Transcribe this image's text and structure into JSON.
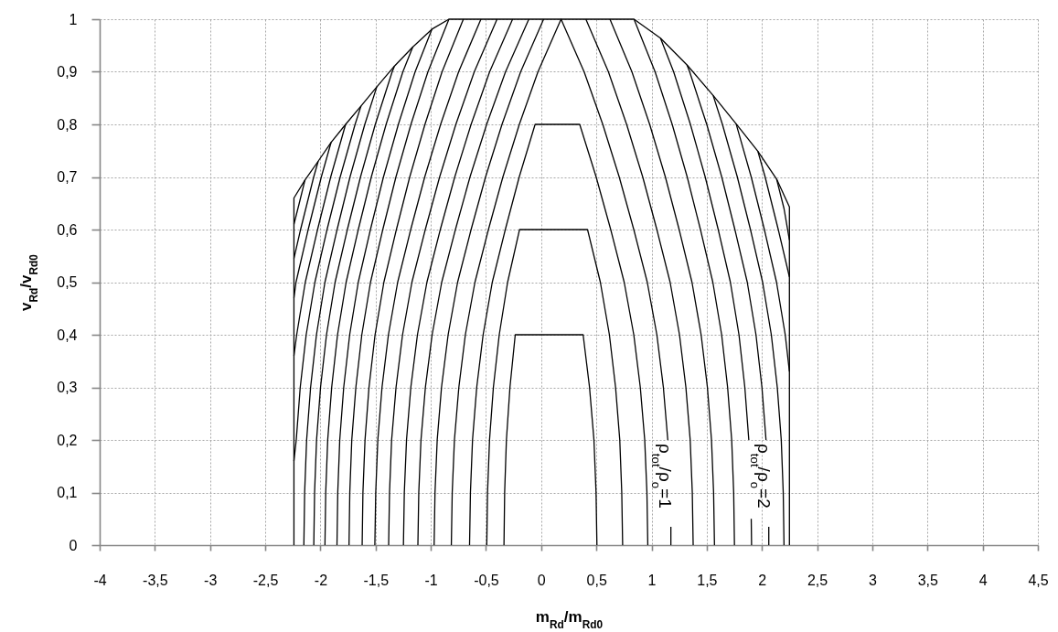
{
  "chart_data": {
    "type": "line",
    "xlabel": "m$_{Rd}$/m$_{Rd0}$",
    "ylabel": "v$_{Rd}$/v$_{Rd0}$",
    "xlim": [
      -4,
      4.5
    ],
    "xticks": [
      -4,
      {
        "value": -3.5,
        "label": "-3,5"
      },
      -3,
      {
        "value": -2.5,
        "label": "-2,5"
      },
      -2,
      {
        "value": -1.5,
        "label": "-1,5"
      },
      -1,
      {
        "value": -0.5,
        "label": "-0,5"
      },
      0,
      {
        "value": 0.5,
        "label": "0,5"
      },
      1,
      {
        "value": 1.5,
        "label": "1,5"
      },
      2,
      {
        "value": 2.5,
        "label": "2,5"
      },
      3,
      {
        "value": 3.5,
        "label": "3,5"
      },
      4,
      {
        "value": 4.5,
        "label": "4,5"
      }
    ],
    "ylim": [
      0,
      1
    ],
    "yticks": [
      0,
      {
        "value": 0.1,
        "label": "0,1"
      },
      {
        "value": 0.2,
        "label": "0,2"
      },
      {
        "value": 0.3,
        "label": "0,3"
      },
      {
        "value": 0.4,
        "label": "0,4"
      },
      {
        "value": 0.5,
        "label": "0,5"
      },
      {
        "value": 0.6,
        "label": "0,6"
      },
      {
        "value": 0.7,
        "label": "0,7"
      },
      {
        "value": 0.8,
        "label": "0,8"
      },
      {
        "value": 0.9,
        "label": "0,9"
      },
      1
    ],
    "grid": true,
    "annotations": [
      {
        "text": "ρ$_{tot}$/ρ$_{o}$=1",
        "x": 1.147,
        "y": 0.2
      },
      {
        "text": "ρ$_{tot}$/ρ$_{o}$=2",
        "x": 2.037,
        "y": 0.2
      }
    ],
    "series": [
      {
        "color": "#000000",
        "x": [
          -2.24,
          -2.24,
          -2.14,
          -2.02,
          -1.903,
          -1.772,
          -1.632,
          -1.49,
          -1.329,
          -1.164,
          -0.99,
          -0.836,
          0.841,
          1.081,
          1.321,
          1.558,
          1.766,
          1.963,
          2.133,
          2.249,
          2.249
        ],
        "values": [
          0,
          0.66,
          0.694,
          0.73,
          0.766,
          0.8,
          0.835,
          0.871,
          0.911,
          0.947,
          0.981,
          1,
          1,
          0.964,
          0.913,
          0.855,
          0.801,
          0.749,
          0.696,
          0.643,
          0
        ]
      },
      {
        "color": "#000000",
        "x": [
          -0.337,
          -0.331,
          -0.315,
          -0.283,
          -0.235,
          0.38,
          0.438,
          0.478,
          0.497,
          0.505
        ],
        "values": [
          0,
          0.1,
          0.2,
          0.3,
          0.4,
          0.4,
          0.3,
          0.2,
          0.1,
          0
        ]
      },
      {
        "color": "#000000",
        "x": [
          -0.493,
          -0.486,
          -0.468,
          -0.433,
          -0.38,
          -0.304,
          -0.196,
          0.42,
          0.536,
          0.618,
          0.674,
          0.712,
          0.73,
          0.738
        ],
        "values": [
          0,
          0.1,
          0.2,
          0.3,
          0.4,
          0.5,
          0.6,
          0.6,
          0.5,
          0.4,
          0.3,
          0.2,
          0.1,
          0
        ]
      },
      {
        "color": "#000000",
        "x": [
          -0.649,
          -0.641,
          -0.622,
          -0.584,
          -0.526,
          -0.443,
          -0.325,
          -0.199,
          -0.055,
          0.349,
          0.498,
          0.63,
          0.752,
          0.839,
          0.898,
          0.938,
          0.958,
          0.966
        ],
        "values": [
          0,
          0.1,
          0.2,
          0.3,
          0.4,
          0.5,
          0.6,
          0.7,
          0.8,
          0.8,
          0.7,
          0.6,
          0.5,
          0.4,
          0.3,
          0.2,
          0.1,
          0
        ]
      },
      {
        "color": "#000000",
        "x": [
          -0.814,
          -0.806,
          -0.786,
          -0.746,
          -0.687,
          -0.6,
          -0.478,
          -0.347,
          -0.198,
          -0.029,
          0.18,
          0.389,
          0.558,
          0.707,
          0.839,
          0.961,
          1.048,
          1.107,
          1.147,
          1.16,
          1.175,
          1.175
        ],
        "values": [
          0,
          0.1,
          0.2,
          0.3,
          0.4,
          0.5,
          0.6,
          0.7,
          0.8,
          0.9,
          1,
          0.9,
          0.8,
          0.7,
          0.6,
          0.5,
          0.4,
          0.3,
          0.2,
          null,
          0.035,
          0
        ]
      },
      {
        "color": "#000000",
        "x": [
          -0.97,
          -0.962,
          -0.942,
          -0.903,
          -0.843,
          -0.757,
          -0.635,
          -0.504,
          -0.355,
          -0.186,
          0.022
        ],
        "values": [
          0,
          0.1,
          0.2,
          0.3,
          0.4,
          0.5,
          0.6,
          0.7,
          0.8,
          0.9,
          1
        ]
      },
      {
        "color": "#000000",
        "x": [
          -1.117,
          -1.109,
          -1.089,
          -1.049,
          -0.988,
          -0.901,
          -0.777,
          -0.645,
          -0.494,
          -0.323,
          -0.112
        ],
        "values": [
          0,
          0.1,
          0.2,
          0.3,
          0.4,
          0.5,
          0.6,
          0.7,
          0.8,
          0.9,
          1
        ]
      },
      {
        "color": "#000000",
        "x": [
          -1.248,
          -1.24,
          -1.22,
          -1.181,
          -1.121,
          -1.035,
          -0.914,
          -0.783,
          -0.635,
          -0.467,
          -0.259
        ],
        "values": [
          0,
          0.1,
          0.2,
          0.3,
          0.4,
          0.5,
          0.6,
          0.7,
          0.8,
          0.9,
          1
        ]
      },
      {
        "color": "#000000",
        "x": [
          -1.382,
          -1.374,
          -1.355,
          -1.315,
          -1.256,
          -1.171,
          -1.05,
          -0.92,
          -0.773,
          -0.606,
          -0.4
        ],
        "values": [
          0,
          0.1,
          0.2,
          0.3,
          0.4,
          0.5,
          0.6,
          0.7,
          0.8,
          0.9,
          1
        ]
      },
      {
        "color": "#000000",
        "x": [
          -1.507,
          -1.499,
          -1.48,
          -1.442,
          -1.384,
          -1.3,
          -1.182,
          -1.055,
          -0.911,
          -0.748,
          -0.546
        ],
        "values": [
          0,
          0.1,
          0.2,
          0.3,
          0.4,
          0.5,
          0.6,
          0.7,
          0.8,
          0.9,
          1
        ]
      },
      {
        "color": "#000000",
        "x": [
          -1.622,
          -1.615,
          -1.596,
          -1.56,
          -1.505,
          -1.425,
          -1.312,
          -1.191,
          -1.053,
          -0.898,
          -0.705
        ],
        "values": [
          0,
          0.1,
          0.2,
          0.3,
          0.4,
          0.5,
          0.6,
          0.7,
          0.8,
          0.9,
          1
        ]
      },
      {
        "color": "#000000",
        "x": [
          -1.741,
          -1.734,
          -1.716,
          -1.679,
          -1.625,
          -1.546,
          -1.435,
          -1.316,
          -1.18,
          -1.026,
          -0.836
        ],
        "values": [
          0,
          0.1,
          0.2,
          0.3,
          0.4,
          0.5,
          0.6,
          0.7,
          0.8,
          0.9,
          1
        ]
      },
      {
        "color": "#000000",
        "x": [
          -1.85,
          -1.843,
          -1.825,
          -1.789,
          -1.735,
          -1.657,
          -1.547,
          -1.429,
          -1.294,
          -1.142,
          -0.99
        ],
        "values": [
          0,
          0.1,
          0.2,
          0.3,
          0.4,
          0.5,
          0.6,
          0.7,
          0.8,
          0.9,
          0.981
        ]
      },
      {
        "color": "#000000",
        "x": [
          -1.959,
          -1.952,
          -1.934,
          -1.898,
          -1.845,
          -1.767,
          -1.657,
          -1.539,
          -1.405,
          -1.253,
          -1.164
        ],
        "values": [
          0,
          0.1,
          0.2,
          0.3,
          0.4,
          0.5,
          0.6,
          0.7,
          0.8,
          0.9,
          0.947
        ]
      },
      {
        "color": "#000000",
        "x": [
          -2.06,
          -2.053,
          -2.035,
          -1.999,
          -1.945,
          -1.867,
          -1.756,
          -1.637,
          -1.503,
          -1.35,
          -1.329
        ],
        "values": [
          0,
          0.1,
          0.2,
          0.3,
          0.4,
          0.5,
          0.6,
          0.7,
          0.8,
          0.9,
          0.911
        ]
      },
      {
        "color": "#000000",
        "x": [
          1.377,
          1.369,
          1.35,
          1.311,
          1.253,
          1.168,
          1.048,
          0.92,
          0.774,
          0.609,
          0.405
        ],
        "values": [
          0,
          0.1,
          0.2,
          0.3,
          0.4,
          0.5,
          0.6,
          0.7,
          0.8,
          0.9,
          1
        ]
      },
      {
        "color": "#000000",
        "x": [
          1.57,
          1.562,
          1.543,
          1.506,
          1.449,
          1.366,
          1.25,
          1.125,
          0.983,
          0.822,
          0.623
        ],
        "values": [
          0,
          0.1,
          0.2,
          0.3,
          0.4,
          0.5,
          0.6,
          0.7,
          0.8,
          0.9,
          1
        ]
      },
      {
        "color": "#000000",
        "x": [
          1.751,
          1.744,
          1.726,
          1.689,
          1.635,
          1.555,
          1.443,
          1.323,
          1.187,
          1.032,
          0.841
        ],
        "values": [
          0,
          0.1,
          0.2,
          0.3,
          0.4,
          0.5,
          0.6,
          0.7,
          0.8,
          0.9,
          1
        ]
      },
      {
        "color": "#000000",
        "x": [
          1.906,
          1.903,
          1.895,
          1.881,
          1.845,
          1.792,
          1.714,
          1.604,
          1.486,
          1.352,
          1.2,
          1.081
        ],
        "values": [
          0,
          0.05,
          null,
          0.2,
          0.3,
          0.4,
          0.5,
          0.6,
          0.7,
          0.8,
          0.9,
          0.964
        ]
      },
      {
        "color": "#000000",
        "x": [
          1.321,
          1.345,
          1.5,
          1.636,
          1.755,
          1.867,
          1.946,
          2,
          2.037,
          2.05,
          2.062,
          2.062
        ],
        "values": [
          0.913,
          0.9,
          0.8,
          0.7,
          0.6,
          0.5,
          0.4,
          0.3,
          0.2,
          null,
          0.035,
          0
        ]
      },
      {
        "color": "#000000",
        "x": [
          1.558,
          1.642,
          1.777,
          1.896,
          2.006,
          2.085,
          2.139,
          2.175,
          2.193,
          2.2
        ],
        "values": [
          0.855,
          0.8,
          0.7,
          0.6,
          0.5,
          0.4,
          0.3,
          0.2,
          0.1,
          0
        ]
      },
      {
        "color": "#000000",
        "x": [
          1.766,
          1.903,
          2.022,
          2.132,
          2.211,
          2.249
        ],
        "values": [
          0.801,
          0.7,
          0.6,
          0.5,
          0.4,
          0.33
        ]
      },
      {
        "color": "#000000",
        "x": [
          1.963,
          2.029,
          2.148,
          2.249
        ],
        "values": [
          0.749,
          0.7,
          0.6,
          0.51
        ]
      },
      {
        "color": "#000000",
        "x": [
          2.133,
          2.2,
          2.249
        ],
        "values": [
          0.696,
          0.64,
          0.58
        ]
      },
      {
        "color": "#000000",
        "x": [
          -2.15,
          -2.143,
          -2.125,
          -2.089,
          -2.036,
          -1.959,
          -1.849,
          -1.732,
          -1.598,
          -1.49
        ],
        "values": [
          0,
          0.1,
          0.2,
          0.3,
          0.4,
          0.5,
          0.6,
          0.7,
          0.8,
          0.871
        ]
      },
      {
        "color": "#000000",
        "x": [
          -2.24,
          -2.219,
          -2.183,
          -2.129,
          -2.05,
          -1.94,
          -1.821,
          -1.686,
          -1.632
        ],
        "values": [
          0.16,
          0.2,
          0.3,
          0.4,
          0.5,
          0.6,
          0.7,
          0.8,
          0.835
        ]
      },
      {
        "color": "#000000",
        "x": [
          -2.24,
          -2.215,
          -2.137,
          -2.026,
          -1.907,
          -1.772
        ],
        "values": [
          0.36,
          0.4,
          0.5,
          0.6,
          0.7,
          0.8
        ]
      },
      {
        "color": "#000000",
        "x": [
          -2.24,
          -2.221,
          -2.111,
          -1.992,
          -1.903
        ],
        "values": [
          0.47,
          0.5,
          0.6,
          0.7,
          0.766
        ]
      },
      {
        "color": "#000000",
        "x": [
          -2.24,
          -2.18,
          -2.061,
          -2.02
        ],
        "values": [
          0.545,
          0.6,
          0.7,
          0.73
        ]
      },
      {
        "color": "#000000",
        "x": [
          -2.24,
          -2.192,
          -2.14
        ],
        "values": [
          0.61,
          0.65,
          0.694
        ]
      }
    ]
  }
}
